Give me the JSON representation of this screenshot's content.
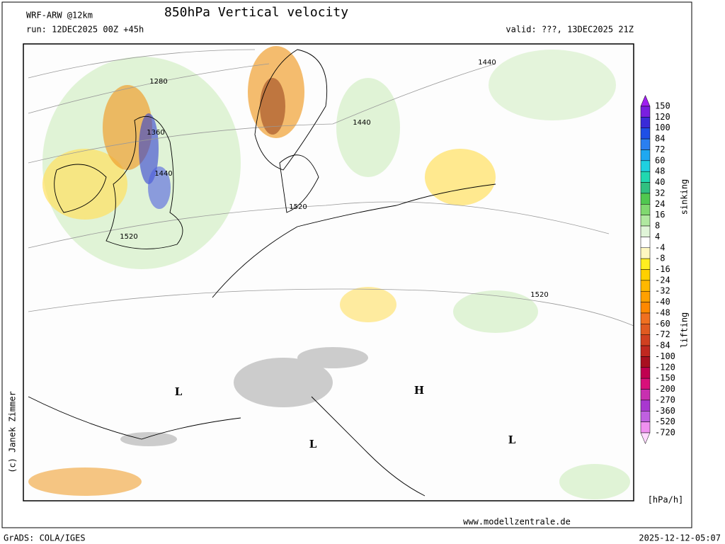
{
  "header": {
    "model": "WRF-ARW @12km",
    "title": "850hPa Vertical velocity",
    "run": "run: 12DEC2025 00Z +45h",
    "valid": "valid: ???, 13DEC2025 21Z"
  },
  "map": {
    "contour_labels": [
      "1280",
      "1360",
      "1440",
      "1520",
      "1440",
      "1520",
      "1440",
      "1520"
    ],
    "pressure_centers": [
      "L",
      "L",
      "H",
      "L"
    ]
  },
  "colorbar": {
    "levels": [
      150,
      120,
      100,
      84,
      72,
      60,
      48,
      40,
      32,
      24,
      16,
      8,
      4,
      -4,
      -8,
      -16,
      -24,
      -32,
      -40,
      -48,
      -60,
      -72,
      -84,
      -100,
      -120,
      -150,
      -200,
      -270,
      -360,
      -520,
      -720
    ],
    "colors": [
      "#a020f0",
      "#7a1fe0",
      "#3a2bd8",
      "#1e4fe6",
      "#2a7ff0",
      "#1ea8f0",
      "#1ed0e0",
      "#20d8b0",
      "#30c080",
      "#50c850",
      "#80d870",
      "#b0e8a0",
      "#e0f5d8",
      "#ffffff",
      "#fff8c0",
      "#ffee20",
      "#ffd000",
      "#ffb800",
      "#ffa000",
      "#ff8800",
      "#f07020",
      "#e05a20",
      "#d04020",
      "#c02820",
      "#a81020",
      "#c00050",
      "#d8107a",
      "#c830b0",
      "#a838d0",
      "#c060e0",
      "#f090f0",
      "#ffd8ff"
    ],
    "upper_label": "sinking",
    "lower_label": "lifting",
    "unit": "[hPa/h]"
  },
  "footer": {
    "copyright": "(c) Janek Zimmer",
    "website": "www.modellzentrale.de",
    "software": "GrADS: COLA/IGES",
    "timestamp": "2025-12-12-05:07"
  }
}
